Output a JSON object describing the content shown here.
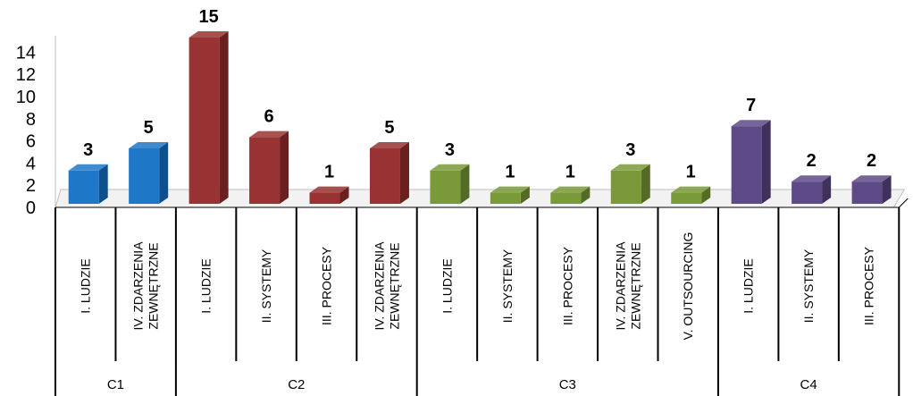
{
  "chart_data": {
    "type": "bar",
    "style": "3d-column",
    "title": "",
    "xlabel": "",
    "ylabel": "",
    "ylim": [
      0,
      14
    ],
    "yticks": [
      0,
      2,
      4,
      6,
      8,
      10,
      12,
      14
    ],
    "grid": false,
    "legend": "none",
    "groups": [
      {
        "name": "C1",
        "color": "#1f77c8",
        "dark": "#0f4f8c",
        "bars": [
          {
            "label": [
              "I.  LUDZIE"
            ],
            "value": 3
          },
          {
            "label": [
              "IV. ZDARZENIA",
              "ZEWNĘTRZNE"
            ],
            "value": 5
          }
        ]
      },
      {
        "name": "C2",
        "color": "#993333",
        "dark": "#6b2020",
        "bars": [
          {
            "label": [
              "I.  LUDZIE"
            ],
            "value": 15
          },
          {
            "label": [
              "II.  SYSTEMY"
            ],
            "value": 6
          },
          {
            "label": [
              "III. PROCESY"
            ],
            "value": 1
          },
          {
            "label": [
              "IV. ZDARZENIA",
              "ZEWNĘTRZNE"
            ],
            "value": 5
          }
        ]
      },
      {
        "name": "C3",
        "color": "#7a9a3a",
        "dark": "#546b26",
        "bars": [
          {
            "label": [
              "I.  LUDZIE"
            ],
            "value": 3
          },
          {
            "label": [
              "II.  SYSTEMY"
            ],
            "value": 1
          },
          {
            "label": [
              "III. PROCESY"
            ],
            "value": 1
          },
          {
            "label": [
              "IV. ZDARZENIA",
              "ZEWNĘTRZNE"
            ],
            "value": 3
          },
          {
            "label": [
              "V. OUTSOURCING"
            ],
            "value": 1
          }
        ]
      },
      {
        "name": "C4",
        "color": "#5e4a87",
        "dark": "#3f315c",
        "bars": [
          {
            "label": [
              "I.  LUDZIE"
            ],
            "value": 7
          },
          {
            "label": [
              "II.  SYSTEMY"
            ],
            "value": 2
          },
          {
            "label": [
              "III. PROCESY"
            ],
            "value": 2
          }
        ]
      }
    ]
  }
}
